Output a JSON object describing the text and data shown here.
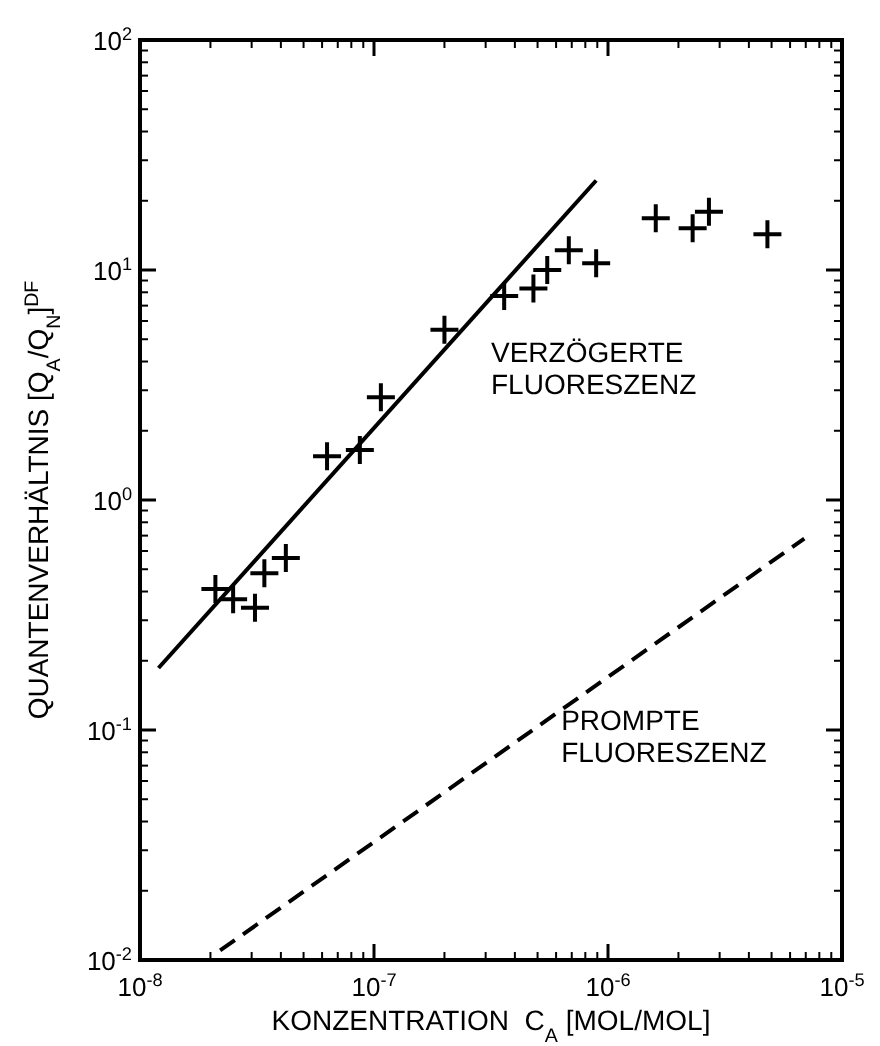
{
  "chart_data": {
    "type": "scatter",
    "xlabel": "KONZENTRATION  C$_{A}$ [MOL/MOL]",
    "ylabel": "QUANTENVERHÄLTNIS [Q$_{A}$/Q$_{N}$]$^{DF}$",
    "log": "xy",
    "marker": "cross",
    "grid": false,
    "xlim": [
      1e-08,
      1e-05
    ],
    "ylim": [
      0.01,
      100
    ],
    "xticks": [
      {
        "value": 1e-08,
        "label": "10$^{-8}$"
      },
      {
        "value": 1e-07,
        "label": "10$^{-7}$"
      },
      {
        "value": 1e-06,
        "label": "10$^{-6}$"
      },
      {
        "value": 1e-05,
        "label": "10$^{-5}$"
      }
    ],
    "yticks": [
      {
        "value": 0.01,
        "label": "10$^{-2}$"
      },
      {
        "value": 0.1,
        "label": "10$^{-1}$"
      },
      {
        "value": 1,
        "label": "10$^{0}$"
      },
      {
        "value": 10,
        "label": "10$^{1}$"
      },
      {
        "value": 100,
        "label": "10$^{2}$"
      }
    ],
    "series": [
      {
        "color": "#000000",
        "x": [
          2.1e-08,
          2.5e-08,
          3.1e-08,
          3.4e-08,
          4.2e-08,
          6.3e-08,
          8.7e-08,
          1.07e-07,
          2e-07,
          3.6e-07,
          4.8e-07,
          5.5e-07,
          6.8e-07,
          8.9e-07,
          1.6e-06,
          2.3e-06,
          2.7e-06,
          4.8e-06
        ],
        "values": [
          0.41,
          0.37,
          0.34,
          0.48,
          0.56,
          1.55,
          1.65,
          2.8,
          5.5,
          7.7,
          8.3,
          10,
          12.2,
          10.7,
          16.8,
          15.2,
          17.9,
          14.3
        ]
      },
      {
        "type": "line",
        "color": "#000000",
        "line_style": "solid",
        "marker": "none",
        "x": [
          1.2e-08,
          8.9e-07
        ],
        "values": [
          0.186,
          24.5
        ]
      },
      {
        "type": "line",
        "color": "#000000",
        "line_style": "dashed",
        "marker": "none",
        "x": [
          2.2e-08,
          6.9e-06
        ],
        "values": [
          0.011,
          0.68
        ]
      }
    ],
    "annotations": [
      "VERZÖGERTE\nFLUORESZENZ",
      "PROMPTE\nFLUORESZENZ"
    ]
  }
}
